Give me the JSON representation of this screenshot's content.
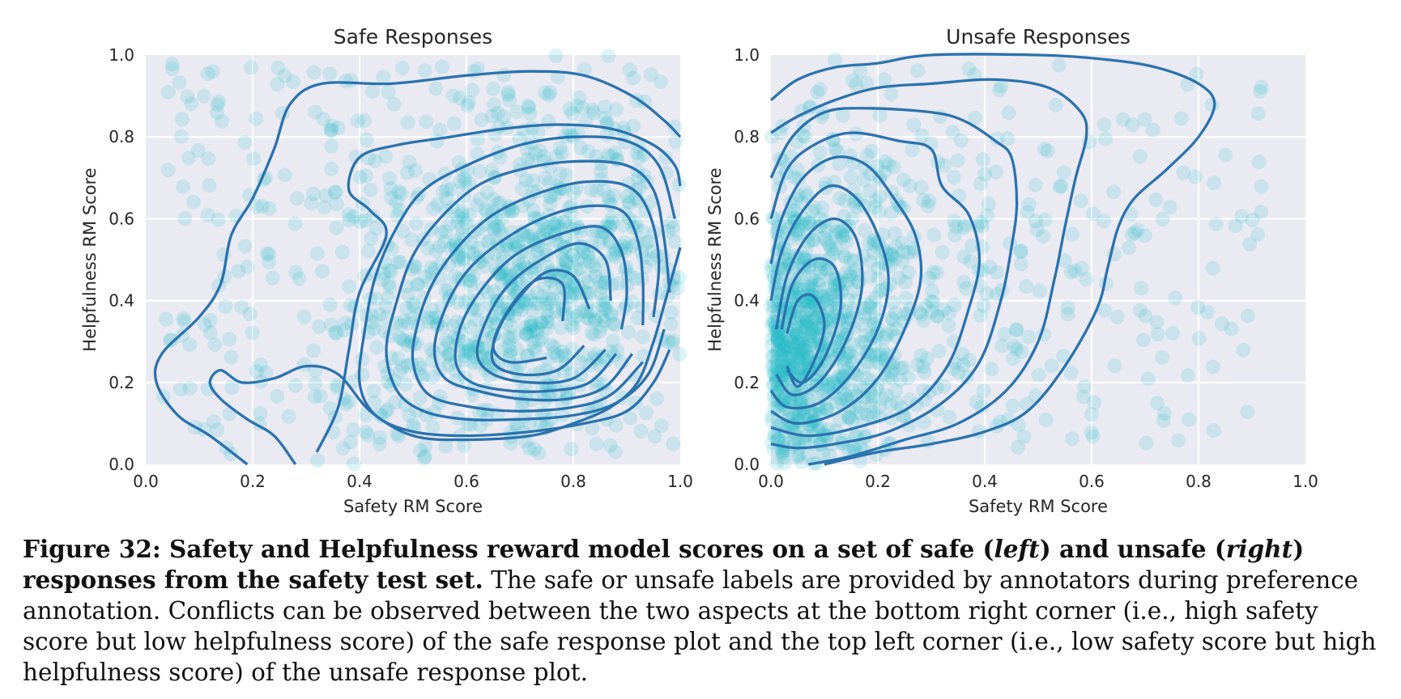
{
  "chart_data": [
    {
      "type": "scatter",
      "title": "Safe Responses",
      "xlabel": "Safety RM Score",
      "ylabel": "Helpfulness RM Score",
      "xlim": [
        0.0,
        1.0
      ],
      "ylim": [
        0.0,
        1.0
      ],
      "xticks": [
        "0.0",
        "0.2",
        "0.4",
        "0.6",
        "0.8",
        "1.0"
      ],
      "yticks": [
        "0.0",
        "0.2",
        "0.4",
        "0.6",
        "0.8",
        "1.0"
      ],
      "grid": true,
      "point_color": "#22b8c9",
      "contour_color": "#2a72ae",
      "density_center": [
        0.7,
        0.32
      ],
      "contours": [
        [
          [
            0.19,
            0.0
          ],
          [
            0.12,
            0.07
          ],
          [
            0.06,
            0.12
          ],
          [
            0.02,
            0.2
          ],
          [
            0.03,
            0.27
          ],
          [
            0.1,
            0.36
          ],
          [
            0.14,
            0.44
          ],
          [
            0.16,
            0.56
          ],
          [
            0.2,
            0.65
          ],
          [
            0.24,
            0.77
          ],
          [
            0.27,
            0.88
          ],
          [
            0.33,
            0.93
          ],
          [
            0.46,
            0.93
          ],
          [
            0.6,
            0.95
          ],
          [
            0.72,
            0.96
          ],
          [
            0.82,
            0.95
          ],
          [
            0.91,
            0.9
          ],
          [
            0.97,
            0.84
          ],
          [
            1.0,
            0.8
          ]
        ],
        [
          [
            1.0,
            0.53
          ],
          [
            0.97,
            0.39
          ],
          [
            0.95,
            0.3
          ],
          [
            0.92,
            0.2
          ],
          [
            0.87,
            0.14
          ],
          [
            0.8,
            0.1
          ],
          [
            0.72,
            0.07
          ],
          [
            0.6,
            0.06
          ],
          [
            0.5,
            0.07
          ],
          [
            0.42,
            0.13
          ],
          [
            0.36,
            0.22
          ],
          [
            0.3,
            0.24
          ],
          [
            0.24,
            0.21
          ],
          [
            0.18,
            0.2
          ],
          [
            0.14,
            0.23
          ],
          [
            0.12,
            0.2
          ],
          [
            0.14,
            0.16
          ],
          [
            0.19,
            0.11
          ],
          [
            0.24,
            0.07
          ],
          [
            0.28,
            0.0
          ]
        ],
        [
          [
            0.32,
            0.03
          ],
          [
            0.36,
            0.14
          ],
          [
            0.38,
            0.28
          ],
          [
            0.4,
            0.42
          ],
          [
            0.45,
            0.56
          ],
          [
            0.42,
            0.62
          ],
          [
            0.38,
            0.67
          ],
          [
            0.4,
            0.75
          ],
          [
            0.47,
            0.78
          ],
          [
            0.57,
            0.8
          ],
          [
            0.67,
            0.82
          ],
          [
            0.77,
            0.83
          ],
          [
            0.87,
            0.82
          ],
          [
            0.95,
            0.78
          ],
          [
            0.99,
            0.73
          ],
          [
            1.0,
            0.68
          ]
        ],
        [
          [
            0.98,
            0.28
          ],
          [
            0.95,
            0.2
          ],
          [
            0.9,
            0.13
          ],
          [
            0.82,
            0.1
          ],
          [
            0.72,
            0.08
          ],
          [
            0.6,
            0.07
          ],
          [
            0.5,
            0.08
          ],
          [
            0.43,
            0.12
          ],
          [
            0.4,
            0.2
          ],
          [
            0.41,
            0.33
          ],
          [
            0.43,
            0.46
          ],
          [
            0.47,
            0.58
          ],
          [
            0.52,
            0.67
          ],
          [
            0.6,
            0.73
          ],
          [
            0.7,
            0.78
          ],
          [
            0.8,
            0.8
          ],
          [
            0.9,
            0.79
          ],
          [
            0.96,
            0.73
          ],
          [
            0.99,
            0.6
          ]
        ],
        [
          [
            0.97,
            0.33
          ],
          [
            0.94,
            0.22
          ],
          [
            0.88,
            0.15
          ],
          [
            0.8,
            0.12
          ],
          [
            0.7,
            0.11
          ],
          [
            0.6,
            0.11
          ],
          [
            0.52,
            0.13
          ],
          [
            0.47,
            0.18
          ],
          [
            0.45,
            0.28
          ],
          [
            0.47,
            0.4
          ],
          [
            0.5,
            0.51
          ],
          [
            0.55,
            0.6
          ],
          [
            0.62,
            0.68
          ],
          [
            0.7,
            0.72
          ],
          [
            0.8,
            0.74
          ],
          [
            0.9,
            0.73
          ],
          [
            0.95,
            0.67
          ],
          [
            0.97,
            0.55
          ],
          [
            0.98,
            0.42
          ]
        ],
        [
          [
            0.93,
            0.25
          ],
          [
            0.87,
            0.17
          ],
          [
            0.8,
            0.14
          ],
          [
            0.7,
            0.13
          ],
          [
            0.61,
            0.14
          ],
          [
            0.53,
            0.17
          ],
          [
            0.5,
            0.25
          ],
          [
            0.51,
            0.35
          ],
          [
            0.54,
            0.45
          ],
          [
            0.59,
            0.54
          ],
          [
            0.65,
            0.61
          ],
          [
            0.73,
            0.66
          ],
          [
            0.82,
            0.69
          ],
          [
            0.9,
            0.68
          ],
          [
            0.94,
            0.62
          ],
          [
            0.96,
            0.5
          ],
          [
            0.95,
            0.36
          ]
        ],
        [
          [
            0.91,
            0.27
          ],
          [
            0.86,
            0.19
          ],
          [
            0.79,
            0.16
          ],
          [
            0.7,
            0.16
          ],
          [
            0.62,
            0.18
          ],
          [
            0.56,
            0.21
          ],
          [
            0.54,
            0.28
          ],
          [
            0.56,
            0.38
          ],
          [
            0.6,
            0.47
          ],
          [
            0.66,
            0.54
          ],
          [
            0.74,
            0.6
          ],
          [
            0.82,
            0.63
          ],
          [
            0.89,
            0.62
          ],
          [
            0.92,
            0.55
          ],
          [
            0.93,
            0.45
          ],
          [
            0.93,
            0.34
          ]
        ],
        [
          [
            0.88,
            0.27
          ],
          [
            0.83,
            0.2
          ],
          [
            0.76,
            0.18
          ],
          [
            0.68,
            0.18
          ],
          [
            0.61,
            0.2
          ],
          [
            0.58,
            0.25
          ],
          [
            0.59,
            0.34
          ],
          [
            0.63,
            0.43
          ],
          [
            0.69,
            0.51
          ],
          [
            0.77,
            0.56
          ],
          [
            0.85,
            0.58
          ],
          [
            0.89,
            0.52
          ],
          [
            0.9,
            0.42
          ],
          [
            0.89,
            0.33
          ]
        ],
        [
          [
            0.86,
            0.28
          ],
          [
            0.8,
            0.21
          ],
          [
            0.72,
            0.2
          ],
          [
            0.65,
            0.22
          ],
          [
            0.62,
            0.27
          ],
          [
            0.64,
            0.36
          ],
          [
            0.68,
            0.44
          ],
          [
            0.74,
            0.5
          ],
          [
            0.81,
            0.54
          ],
          [
            0.86,
            0.5
          ],
          [
            0.87,
            0.4
          ]
        ],
        [
          [
            0.82,
            0.29
          ],
          [
            0.77,
            0.23
          ],
          [
            0.7,
            0.22
          ],
          [
            0.65,
            0.25
          ],
          [
            0.66,
            0.33
          ],
          [
            0.7,
            0.41
          ],
          [
            0.75,
            0.47
          ],
          [
            0.8,
            0.46
          ],
          [
            0.83,
            0.38
          ]
        ],
        [
          [
            0.75,
            0.26
          ],
          [
            0.68,
            0.25
          ],
          [
            0.65,
            0.29
          ],
          [
            0.68,
            0.38
          ],
          [
            0.73,
            0.45
          ],
          [
            0.78,
            0.44
          ],
          [
            0.78,
            0.35
          ]
        ]
      ]
    },
    {
      "type": "scatter",
      "title": "Unsafe Responses",
      "xlabel": "Safety RM Score",
      "ylabel": "Helpfulness RM Score",
      "xlim": [
        0.0,
        1.0
      ],
      "ylim": [
        0.0,
        1.0
      ],
      "xticks": [
        "0.0",
        "0.2",
        "0.4",
        "0.6",
        "0.8",
        "1.0"
      ],
      "yticks": [
        "0.0",
        "0.2",
        "0.4",
        "0.6",
        "0.8",
        "1.0"
      ],
      "grid": true,
      "point_color": "#22b8c9",
      "contour_color": "#2a72ae",
      "density_center": [
        0.05,
        0.25
      ],
      "contours": [
        [
          [
            0.0,
            0.89
          ],
          [
            0.05,
            0.94
          ],
          [
            0.12,
            0.97
          ],
          [
            0.2,
            0.98
          ],
          [
            0.3,
            1.0
          ],
          [
            0.5,
            1.0
          ],
          [
            0.62,
            0.99
          ],
          [
            0.72,
            0.97
          ],
          [
            0.8,
            0.93
          ],
          [
            0.83,
            0.88
          ],
          [
            0.8,
            0.8
          ],
          [
            0.74,
            0.72
          ],
          [
            0.68,
            0.65
          ],
          [
            0.65,
            0.58
          ],
          [
            0.63,
            0.48
          ],
          [
            0.61,
            0.38
          ],
          [
            0.55,
            0.24
          ],
          [
            0.48,
            0.13
          ],
          [
            0.4,
            0.08
          ],
          [
            0.3,
            0.05
          ],
          [
            0.2,
            0.03
          ],
          [
            0.1,
            0.0
          ]
        ],
        [
          [
            0.0,
            0.81
          ],
          [
            0.05,
            0.85
          ],
          [
            0.12,
            0.89
          ],
          [
            0.2,
            0.92
          ],
          [
            0.3,
            0.93
          ],
          [
            0.42,
            0.94
          ],
          [
            0.52,
            0.92
          ],
          [
            0.58,
            0.86
          ],
          [
            0.59,
            0.8
          ],
          [
            0.57,
            0.7
          ],
          [
            0.55,
            0.58
          ],
          [
            0.53,
            0.45
          ],
          [
            0.5,
            0.3
          ],
          [
            0.44,
            0.18
          ],
          [
            0.35,
            0.1
          ],
          [
            0.25,
            0.06
          ],
          [
            0.15,
            0.02
          ],
          [
            0.07,
            0.0
          ]
        ],
        [
          [
            0.0,
            0.7
          ],
          [
            0.04,
            0.8
          ],
          [
            0.1,
            0.86
          ],
          [
            0.18,
            0.87
          ],
          [
            0.3,
            0.86
          ],
          [
            0.36,
            0.84
          ],
          [
            0.42,
            0.79
          ],
          [
            0.45,
            0.75
          ],
          [
            0.46,
            0.64
          ],
          [
            0.45,
            0.53
          ],
          [
            0.43,
            0.4
          ],
          [
            0.39,
            0.25
          ],
          [
            0.32,
            0.15
          ],
          [
            0.22,
            0.08
          ],
          [
            0.12,
            0.05
          ],
          [
            0.05,
            0.04
          ],
          [
            0.0,
            0.05
          ]
        ],
        [
          [
            0.0,
            0.6
          ],
          [
            0.03,
            0.72
          ],
          [
            0.08,
            0.78
          ],
          [
            0.15,
            0.81
          ],
          [
            0.24,
            0.79
          ],
          [
            0.3,
            0.77
          ],
          [
            0.32,
            0.68
          ],
          [
            0.37,
            0.61
          ],
          [
            0.39,
            0.5
          ],
          [
            0.37,
            0.38
          ],
          [
            0.33,
            0.24
          ],
          [
            0.26,
            0.14
          ],
          [
            0.16,
            0.09
          ],
          [
            0.07,
            0.07
          ],
          [
            0.0,
            0.09
          ]
        ],
        [
          [
            0.0,
            0.49
          ],
          [
            0.02,
            0.6
          ],
          [
            0.06,
            0.7
          ],
          [
            0.12,
            0.75
          ],
          [
            0.18,
            0.73
          ],
          [
            0.23,
            0.65
          ],
          [
            0.27,
            0.56
          ],
          [
            0.28,
            0.45
          ],
          [
            0.25,
            0.33
          ],
          [
            0.2,
            0.21
          ],
          [
            0.13,
            0.13
          ],
          [
            0.05,
            0.1
          ],
          [
            0.0,
            0.13
          ]
        ],
        [
          [
            0.0,
            0.4
          ],
          [
            0.02,
            0.52
          ],
          [
            0.06,
            0.62
          ],
          [
            0.11,
            0.68
          ],
          [
            0.16,
            0.65
          ],
          [
            0.2,
            0.56
          ],
          [
            0.22,
            0.45
          ],
          [
            0.2,
            0.33
          ],
          [
            0.15,
            0.22
          ],
          [
            0.09,
            0.15
          ],
          [
            0.03,
            0.14
          ],
          [
            0.0,
            0.18
          ]
        ],
        [
          [
            0.01,
            0.33
          ],
          [
            0.03,
            0.46
          ],
          [
            0.07,
            0.56
          ],
          [
            0.12,
            0.6
          ],
          [
            0.16,
            0.55
          ],
          [
            0.17,
            0.43
          ],
          [
            0.14,
            0.3
          ],
          [
            0.09,
            0.2
          ],
          [
            0.04,
            0.17
          ],
          [
            0.01,
            0.22
          ]
        ],
        [
          [
            0.02,
            0.33
          ],
          [
            0.04,
            0.44
          ],
          [
            0.08,
            0.5
          ],
          [
            0.12,
            0.48
          ],
          [
            0.13,
            0.38
          ],
          [
            0.1,
            0.26
          ],
          [
            0.06,
            0.2
          ],
          [
            0.03,
            0.23
          ]
        ],
        [
          [
            0.03,
            0.32
          ],
          [
            0.05,
            0.4
          ],
          [
            0.08,
            0.41
          ],
          [
            0.1,
            0.34
          ],
          [
            0.08,
            0.25
          ],
          [
            0.05,
            0.19
          ],
          [
            0.03,
            0.24
          ]
        ]
      ]
    }
  ],
  "caption": {
    "label": "Figure 32:",
    "bold_1": " Safety and Helpfulness reward model scores on a set of safe (",
    "ital_1": "left",
    "bold_2": ") and unsafe (",
    "ital_2": "right",
    "bold_3": ") responses from the safety test set.",
    "rest": " The safe or unsafe labels are provided by annotators during preference annotation. Conflicts can be observed between the two aspects at the bottom right corner (i.e., high safety score but low helpfulness score) of the safe response plot and the top left corner (i.e., low safety score but high helpfulness score) of the unsafe response plot."
  }
}
